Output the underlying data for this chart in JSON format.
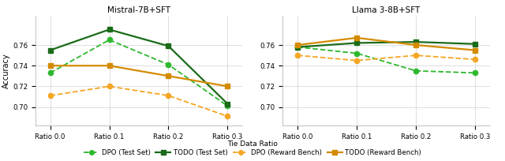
{
  "left_title": "Mistral-7B+SFT",
  "right_title": "Llama 3-8B+SFT",
  "x_labels": [
    "Ratio 0.0",
    "Ratio 0.1",
    "Ratio 0.2",
    "Ratio 0.3"
  ],
  "x_values": [
    0,
    1,
    2,
    3
  ],
  "xlabel": "Tie Data Ratio",
  "left": {
    "dpo_test": [
      0.733,
      0.765,
      0.741,
      0.701
    ],
    "todo_test": [
      0.755,
      0.775,
      0.759,
      0.703
    ],
    "dpo_reward": [
      0.711,
      0.72,
      0.711,
      0.691
    ],
    "todo_reward": [
      0.74,
      0.74,
      0.73,
      0.72
    ]
  },
  "right": {
    "dpo_test": [
      0.758,
      0.752,
      0.735,
      0.733
    ],
    "todo_test": [
      0.758,
      0.762,
      0.763,
      0.761
    ],
    "dpo_reward": [
      0.75,
      0.745,
      0.75,
      0.746
    ],
    "todo_reward": [
      0.76,
      0.767,
      0.76,
      0.755
    ]
  },
  "color_dpo_test": "#2db82d",
  "color_todo_test": "#1a6b1a",
  "color_dpo_reward": "#f5a623",
  "color_todo_reward": "#d48b00",
  "ylabel": "Accuracy",
  "left_ylim": [
    0.682,
    0.788
  ],
  "right_ylim": [
    0.682,
    0.788
  ],
  "left_yticks": [
    0.7,
    0.72,
    0.74,
    0.76
  ],
  "right_yticks": [
    0.7,
    0.72,
    0.74,
    0.76
  ],
  "legend_labels": [
    "DPO (Test Set)",
    "TODO (Test Set)",
    "DPO (Reward Bench)",
    "TODO (Reward Bench)"
  ]
}
